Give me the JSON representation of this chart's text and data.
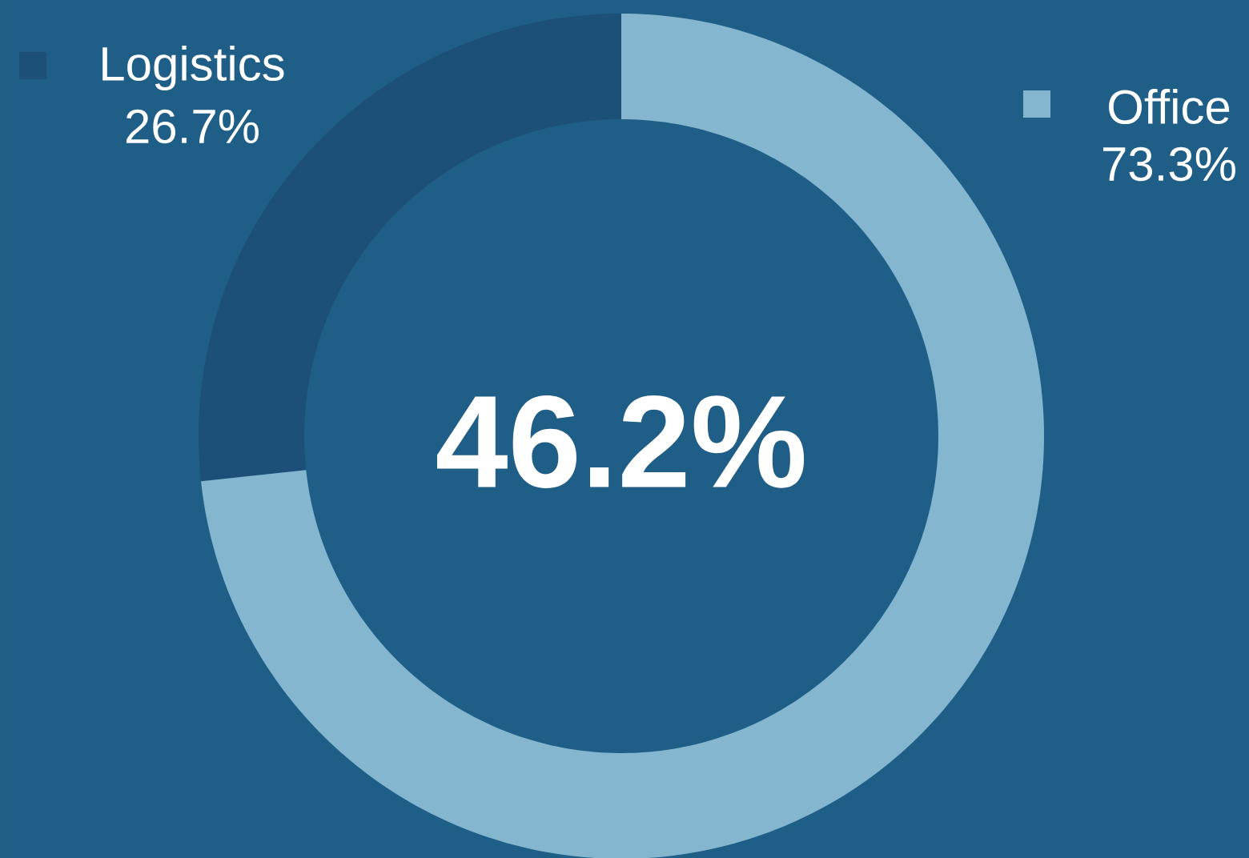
{
  "chart_data": {
    "type": "donut",
    "categories": [
      "Logistics",
      "Office"
    ],
    "values": [
      26.7,
      73.3
    ],
    "colors": [
      "#1d5079",
      "#84b6d0"
    ],
    "value_labels": [
      "26.7%",
      "73.3%"
    ],
    "annotations": [
      "46.2%"
    ],
    "legend": "top"
  }
}
